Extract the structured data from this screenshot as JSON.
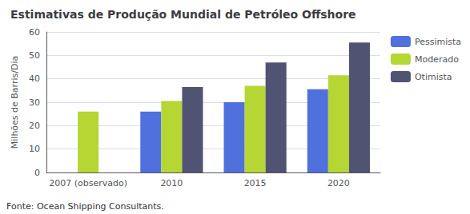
{
  "chart_data": {
    "type": "bar",
    "title": "Estimativas de Produção Mundial de Petróleo Offshore",
    "annotations": [
      "Fonte: Ocean Shipping Consultants."
    ],
    "y_label": "Milhões de Barris/Dia",
    "categories": [
      "2007 (observado)",
      "2010",
      "2015",
      "2020"
    ],
    "series": [
      {
        "name": "Pessimista",
        "values": [
          null,
          26,
          30,
          35.5
        ]
      },
      {
        "name": "Moderado",
        "values": [
          26,
          30.5,
          37,
          41.5
        ]
      },
      {
        "name": "Otimista",
        "values": [
          null,
          36.5,
          47,
          55.5
        ]
      }
    ],
    "ylim": [
      0,
      60
    ],
    "yticks": [
      0,
      10,
      20,
      30,
      40,
      50,
      60
    ],
    "grid": true,
    "legend": "right"
  }
}
